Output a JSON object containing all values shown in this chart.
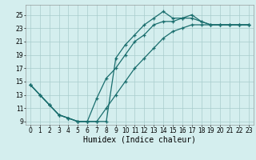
{
  "xlabel": "Humidex (Indice chaleur)",
  "bg_color": "#d4eeee",
  "grid_color": "#a8cccc",
  "line_color": "#1a6e6e",
  "line1_x": [
    0,
    1,
    2,
    3,
    4,
    5,
    6,
    7,
    8,
    9,
    10,
    11,
    12,
    13,
    14,
    15,
    16,
    17,
    18,
    19,
    20,
    21,
    22,
    23
  ],
  "line1_y": [
    14.5,
    13.0,
    11.5,
    10.0,
    9.5,
    9.0,
    9.0,
    9.0,
    9.0,
    18.5,
    20.5,
    22.0,
    23.5,
    24.5,
    25.5,
    24.5,
    24.5,
    25.0,
    24.0,
    23.5,
    23.5,
    23.5,
    23.5,
    23.5
  ],
  "line2_x": [
    0,
    1,
    2,
    3,
    4,
    5,
    6,
    7,
    8,
    9,
    10,
    11,
    12,
    13,
    14,
    15,
    16,
    17,
    18,
    19,
    20,
    21,
    22,
    23
  ],
  "line2_y": [
    14.5,
    13.0,
    11.5,
    10.0,
    9.5,
    9.0,
    9.0,
    12.5,
    15.5,
    17.0,
    19.0,
    21.0,
    22.0,
    23.5,
    24.0,
    24.0,
    24.5,
    24.5,
    24.0,
    23.5,
    23.5,
    23.5,
    23.5,
    23.5
  ],
  "line3_x": [
    0,
    1,
    2,
    3,
    4,
    5,
    6,
    7,
    8,
    9,
    10,
    11,
    12,
    13,
    14,
    15,
    16,
    17,
    18,
    19,
    20,
    21,
    22,
    23
  ],
  "line3_y": [
    14.5,
    13.0,
    11.5,
    10.0,
    9.5,
    9.0,
    9.0,
    9.0,
    11.0,
    13.0,
    15.0,
    17.0,
    18.5,
    20.0,
    21.5,
    22.5,
    23.0,
    23.5,
    23.5,
    23.5,
    23.5,
    23.5,
    23.5,
    23.5
  ],
  "ylim": [
    8.5,
    26.5
  ],
  "xlim": [
    -0.5,
    23.5
  ],
  "yticks": [
    9,
    11,
    13,
    15,
    17,
    19,
    21,
    23,
    25
  ],
  "xticks": [
    0,
    1,
    2,
    3,
    4,
    5,
    6,
    7,
    8,
    9,
    10,
    11,
    12,
    13,
    14,
    15,
    16,
    17,
    18,
    19,
    20,
    21,
    22,
    23
  ],
  "tick_fontsize": 5.5,
  "label_fontsize": 7,
  "lw": 0.9,
  "ms": 3.5
}
